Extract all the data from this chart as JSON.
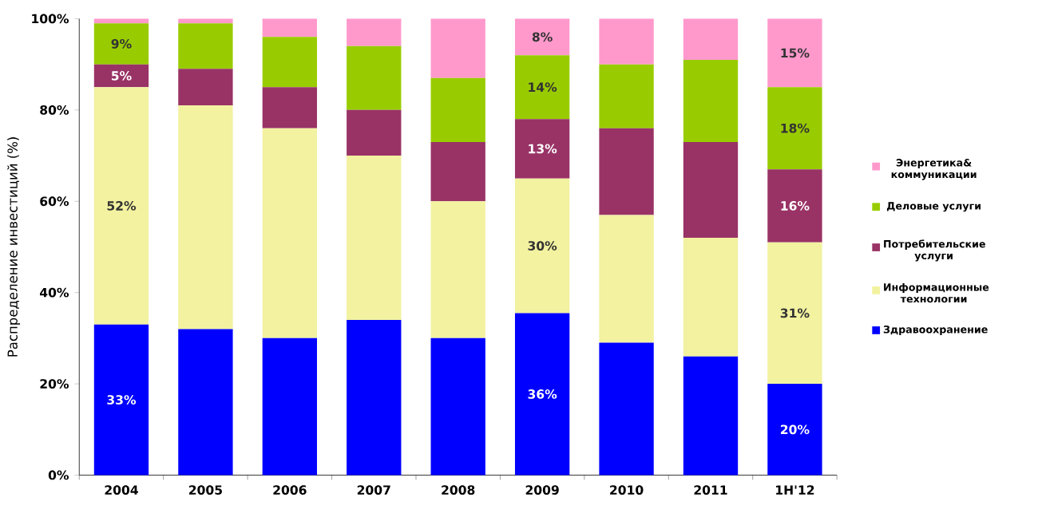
{
  "chart_data": {
    "type": "bar",
    "stacked": true,
    "ylabel": "Распределение инвестиций (%)",
    "categories": [
      "2004",
      "2005",
      "2006",
      "2007",
      "2008",
      "2009",
      "2010",
      "2011",
      "1H'12"
    ],
    "series": [
      {
        "name": "Здравоохранение",
        "color": "#0000ff",
        "values": [
          33,
          32,
          30,
          34,
          30,
          35.5,
          29,
          26,
          20
        ],
        "value_labels": [
          "33%",
          null,
          null,
          null,
          null,
          "36%",
          null,
          null,
          "20%"
        ]
      },
      {
        "name": "Информационные технологии",
        "color": "#f2f2a0",
        "values": [
          52,
          49,
          46,
          36,
          30,
          29.5,
          28,
          26,
          31
        ],
        "value_labels": [
          "52%",
          null,
          null,
          null,
          null,
          "30%",
          null,
          null,
          "31%"
        ]
      },
      {
        "name": "Потребительские услуги",
        "color": "#993366",
        "values": [
          5,
          8,
          9,
          10,
          13,
          13,
          19,
          21,
          16
        ],
        "value_labels": [
          "5%",
          null,
          null,
          null,
          null,
          "13%",
          null,
          null,
          "16%"
        ]
      },
      {
        "name": "Деловые услуги",
        "color": "#99cc00",
        "values": [
          9,
          10,
          11,
          14,
          14,
          14,
          14,
          18,
          18
        ],
        "value_labels": [
          "9%",
          null,
          null,
          null,
          null,
          "14%",
          null,
          null,
          "18%"
        ]
      },
      {
        "name": "Энергетика& коммуникации",
        "color": "#ff99cc",
        "values": [
          1,
          1,
          4,
          6,
          13,
          8,
          10,
          9,
          15
        ],
        "value_labels": [
          null,
          null,
          null,
          null,
          null,
          "8%",
          null,
          null,
          "15%"
        ]
      }
    ],
    "ylim": [
      0,
      100
    ],
    "yticks": [
      {
        "value": 0,
        "label": "0%"
      },
      {
        "value": 20,
        "label": "20%"
      },
      {
        "value": 40,
        "label": "40%"
      },
      {
        "value": 60,
        "label": "60%"
      },
      {
        "value": 80,
        "label": "80%"
      },
      {
        "value": 100,
        "label": "100%"
      }
    ],
    "legend": "right",
    "grid": false
  }
}
